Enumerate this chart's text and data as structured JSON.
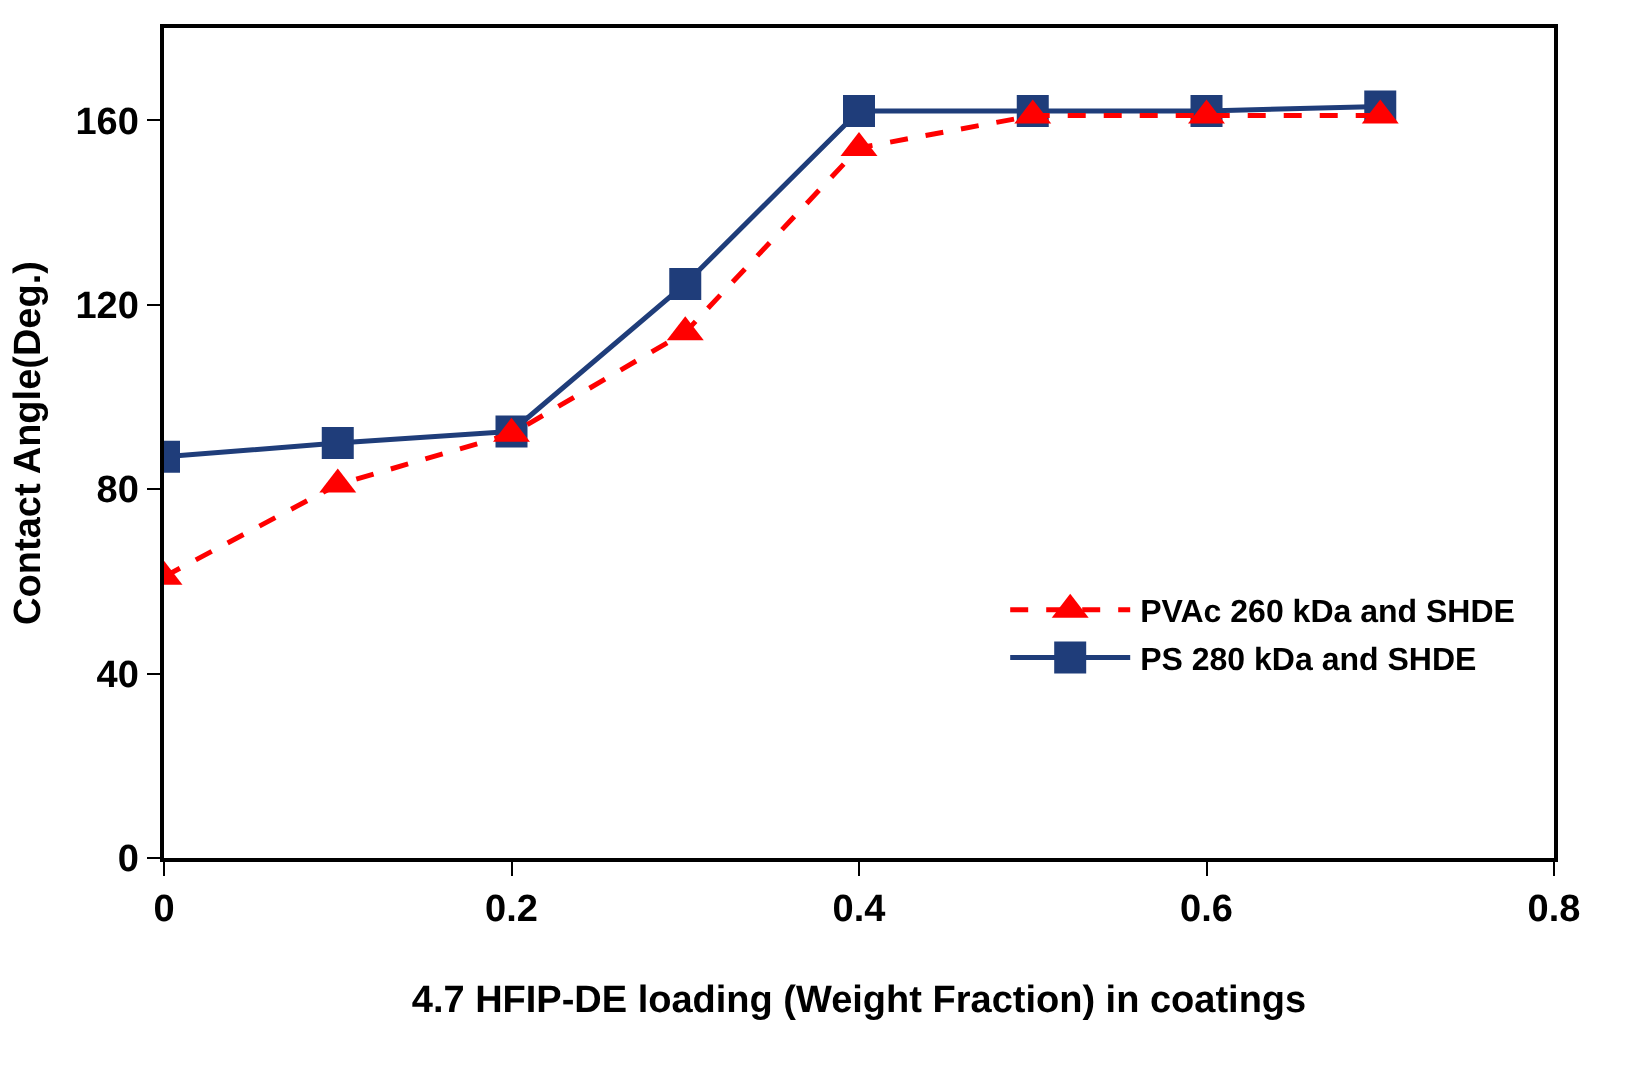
{
  "chart_data": {
    "type": "line",
    "xlabel": "4.7 HFIP-DE loading (Weight Fraction) in coatings",
    "ylabel": "Contact Angle(Deg.)",
    "x": [
      0,
      0.1,
      0.2,
      0.3,
      0.4,
      0.5,
      0.6,
      0.7
    ],
    "xlim": [
      0,
      0.8
    ],
    "xticks": [
      0,
      0.2,
      0.4,
      0.6,
      0.8
    ],
    "ylim": [
      0,
      180
    ],
    "yticks": [
      0,
      40,
      80,
      120,
      160
    ],
    "grid": false,
    "legend": "bottom right",
    "series": [
      {
        "name": "PVAc 260 kDa and SHDE",
        "color": "#ff0000",
        "marker": "triangle",
        "line_style": "dashed",
        "values": [
          61,
          81,
          92,
          114,
          154,
          161,
          161,
          161
        ]
      },
      {
        "name": "PS 280 kDa and SHDE",
        "color": "#1f3d7a",
        "marker": "square",
        "line_style": "solid",
        "values": [
          87,
          90,
          92.5,
          124.5,
          162,
          162,
          162,
          163
        ]
      }
    ]
  }
}
